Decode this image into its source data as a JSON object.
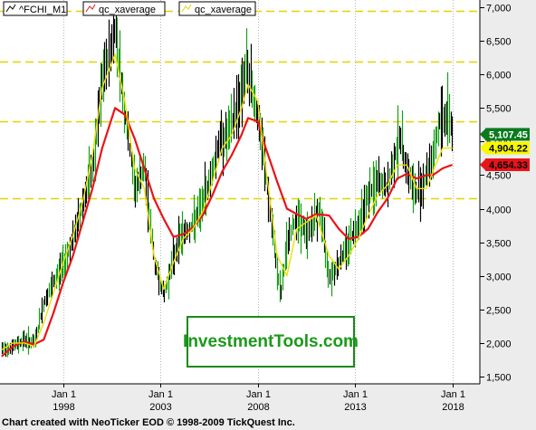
{
  "footer_text": "Chart created with NeoTicker EOD © 1998-2009 TickQuest Inc.",
  "watermark_text": "InvestmentTools.com",
  "colors": {
    "plot_bg": "#ffffff",
    "outer_bg": "#ececec",
    "price_bars": "#000000",
    "slow_avg": "#e8141a",
    "fast_avg": "#f0e000",
    "support_lines": "#e6d200",
    "label_green": "#0a7a1e",
    "label_yellow": "#f7f700",
    "label_red": "#e8141a"
  },
  "chart_data": {
    "type": "line",
    "x_label": "",
    "y_label": "",
    "y_range": [
      1500,
      7250
    ],
    "y_ticks": [
      1500,
      2000,
      2500,
      3000,
      3500,
      4000,
      4500,
      5000,
      5500,
      6000,
      6500,
      7000
    ],
    "y_tick_labels": [
      "1,500",
      "2,000",
      "2,500",
      "3,000",
      "3,500",
      "4,000",
      "4,500",
      "5,000",
      "5,500",
      "6,000",
      "6,500",
      "7,000"
    ],
    "x_range": [
      "1994-10-01",
      "2019-06-01"
    ],
    "x_ticks": [
      {
        "date": "1998-01-01",
        "label_top": "Jan 1",
        "label_bottom": "1998"
      },
      {
        "date": "2003-01-01",
        "label_top": "Jan 1",
        "label_bottom": "2003"
      },
      {
        "date": "2008-01-01",
        "label_top": "Jan 1",
        "label_bottom": "2008"
      },
      {
        "date": "2013-01-01",
        "label_top": "Jan 1",
        "label_bottom": "2013"
      },
      {
        "date": "2018-01-01",
        "label_top": "Jan 1",
        "label_bottom": "2018"
      }
    ],
    "horizontal_lines": [
      6950,
      6190,
      5300,
      4160
    ],
    "legend": [
      {
        "name": "^FCHI_M1",
        "color": "#000000"
      },
      {
        "name": "qc_xaverage",
        "color": "#e8141a"
      },
      {
        "name": "qc_xaverage",
        "color": "#e6d200"
      }
    ],
    "last_values": [
      {
        "label": "5,107.45",
        "value": 5107.45,
        "bg": "#0a7a1e",
        "fg": "#ffffff"
      },
      {
        "label": "4,904.22",
        "value": 4904.22,
        "bg": "#f7f700",
        "fg": "#000000"
      },
      {
        "label": "4,654.33",
        "value": 4654.33,
        "bg": "#e8141a",
        "fg": "#000000"
      }
    ],
    "series": [
      {
        "name": "^FCHI_M1",
        "type": "price",
        "x": [
          "1994-11",
          "1995-06",
          "1996-01",
          "1996-07",
          "1997-01",
          "1997-07",
          "1998-01",
          "1998-07",
          "1999-01",
          "1999-07",
          "2000-01",
          "2000-09",
          "2001-03",
          "2001-09",
          "2002-03",
          "2002-09",
          "2003-03",
          "2003-07",
          "2004-01",
          "2004-07",
          "2005-01",
          "2005-07",
          "2006-01",
          "2006-07",
          "2007-01",
          "2007-06",
          "2007-11",
          "2008-05",
          "2008-11",
          "2009-03",
          "2009-07",
          "2010-01",
          "2010-07",
          "2011-03",
          "2011-09",
          "2012-03",
          "2012-09",
          "2013-03",
          "2013-09",
          "2014-03",
          "2014-09",
          "2015-04",
          "2015-10",
          "2016-02",
          "2016-07",
          "2017-01",
          "2017-05",
          "2017-11",
          "2018-01"
        ],
        "values": [
          1900,
          1950,
          2050,
          2000,
          2600,
          2900,
          3200,
          3550,
          4100,
          4600,
          5900,
          6700,
          5400,
          4300,
          4600,
          3200,
          2700,
          3100,
          3600,
          3700,
          3950,
          4400,
          5000,
          5100,
          5600,
          6100,
          5600,
          4700,
          3400,
          2700,
          3500,
          3900,
          3600,
          4000,
          3000,
          3200,
          3500,
          3800,
          4200,
          4400,
          4300,
          5100,
          4500,
          4200,
          4400,
          4800,
          5300,
          5400,
          5107
        ]
      },
      {
        "name": "qc_xaverage",
        "type": "slow",
        "x": [
          "1994-11",
          "1995-06",
          "1996-01",
          "1996-07",
          "1997-01",
          "1997-07",
          "1998-01",
          "1998-07",
          "1999-01",
          "1999-07",
          "2000-01",
          "2000-09",
          "2001-03",
          "2001-09",
          "2002-03",
          "2002-09",
          "2003-03",
          "2003-09",
          "2004-03",
          "2004-09",
          "2005-03",
          "2005-09",
          "2006-03",
          "2006-09",
          "2007-03",
          "2007-07",
          "2008-01",
          "2008-06",
          "2009-01",
          "2009-07",
          "2010-01",
          "2010-07",
          "2011-01",
          "2011-09",
          "2012-03",
          "2012-09",
          "2013-03",
          "2013-09",
          "2014-03",
          "2014-09",
          "2015-03",
          "2015-09",
          "2016-03",
          "2016-09",
          "2017-01",
          "2017-07",
          "2018-01"
        ],
        "values": [
          1800,
          1950,
          2020,
          1980,
          2050,
          2450,
          2900,
          3300,
          3800,
          4300,
          4900,
          5500,
          5400,
          5050,
          4600,
          4150,
          3850,
          3580,
          3620,
          3720,
          3900,
          4200,
          4550,
          4800,
          5100,
          5350,
          5300,
          4900,
          4400,
          4000,
          3920,
          3850,
          3920,
          3900,
          3700,
          3550,
          3580,
          3700,
          3950,
          4150,
          4450,
          4520,
          4450,
          4500,
          4500,
          4600,
          4654
        ]
      },
      {
        "name": "qc_xaverage",
        "type": "fast",
        "x": [
          "1994-11",
          "1995-06",
          "1996-01",
          "1996-07",
          "1997-01",
          "1997-07",
          "1998-01",
          "1998-07",
          "1999-01",
          "1999-07",
          "2000-01",
          "2000-09",
          "2001-03",
          "2001-09",
          "2002-03",
          "2002-09",
          "2003-03",
          "2003-09",
          "2004-03",
          "2004-09",
          "2005-03",
          "2005-09",
          "2006-03",
          "2006-09",
          "2007-03",
          "2007-07",
          "2008-01",
          "2008-06",
          "2009-01",
          "2009-07",
          "2010-01",
          "2010-07",
          "2011-01",
          "2011-09",
          "2012-03",
          "2012-09",
          "2013-03",
          "2013-09",
          "2014-03",
          "2014-09",
          "2015-03",
          "2015-09",
          "2016-03",
          "2016-09",
          "2017-01",
          "2017-07",
          "2018-01"
        ],
        "values": [
          1900,
          2000,
          2000,
          1950,
          2300,
          2750,
          3200,
          3600,
          4100,
          4800,
          5800,
          6300,
          5600,
          4600,
          4300,
          3300,
          2800,
          3200,
          3550,
          3700,
          3950,
          4400,
          4900,
          5100,
          5500,
          5850,
          5600,
          4600,
          3300,
          3000,
          3700,
          3800,
          3900,
          3300,
          3100,
          3300,
          3550,
          3900,
          4200,
          4350,
          4650,
          4650,
          4300,
          4300,
          4550,
          4900,
          4904
        ]
      }
    ]
  }
}
